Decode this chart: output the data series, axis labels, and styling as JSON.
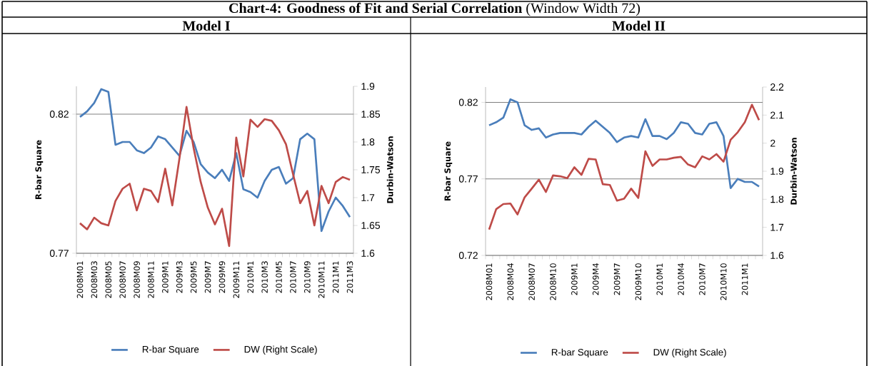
{
  "chart_data": [
    {
      "type": "line",
      "title": "Model I",
      "ylabel": "R-bar Square",
      "y2label": "Durbin-Watson",
      "annotations": [
        "**Chart-4: Goodness of Fit and Serial Correlation** (Window Width 72)"
      ],
      "categories": [
        "2008M01",
        null,
        "2008M03",
        null,
        "2008M05",
        null,
        "2008M07",
        null,
        "2008M09",
        null,
        "2008M11",
        null,
        "2009M1",
        null,
        "2009M3",
        null,
        "2009M5",
        null,
        "2009M7",
        null,
        "2009M9",
        null,
        "2009M11",
        null,
        "2010M1",
        null,
        "2010M3",
        null,
        "2010M5",
        null,
        "2010M7",
        null,
        "2010M9",
        null,
        "2010M11",
        null,
        "2011M1",
        null,
        "2011M3"
      ],
      "series": [
        {
          "name": "R-bar Square",
          "color": "#4a7ebb",
          "values": [
            0.819,
            0.821,
            0.824,
            0.829,
            0.828,
            0.809,
            0.81,
            0.81,
            0.807,
            0.806,
            0.808,
            0.812,
            0.811,
            0.808,
            0.805,
            0.814,
            0.81,
            0.802,
            0.799,
            0.797,
            0.8,
            0.796,
            0.806,
            0.793,
            0.792,
            0.79,
            0.796,
            0.8,
            0.801,
            0.795,
            0.797,
            0.811,
            0.813,
            0.811,
            0.778,
            0.785,
            0.79,
            0.787,
            0.783
          ]
        },
        {
          "name": "DW (Right Scale)",
          "color": "#be4b48",
          "axis": "y2",
          "values": [
            1.654,
            1.643,
            1.664,
            1.654,
            1.65,
            1.694,
            1.716,
            1.725,
            1.677,
            1.716,
            1.712,
            1.692,
            1.752,
            1.686,
            1.77,
            1.863,
            1.789,
            1.728,
            1.682,
            1.652,
            1.68,
            1.613,
            1.808,
            1.738,
            1.84,
            1.827,
            1.841,
            1.838,
            1.821,
            1.796,
            1.742,
            1.69,
            1.712,
            1.65,
            1.721,
            1.69,
            1.728,
            1.737,
            1.732
          ]
        }
      ],
      "ylim": [
        0.77,
        0.83
      ],
      "yticks": [
        0.77,
        0.82
      ],
      "y2lim": [
        1.6,
        1.9
      ],
      "y2ticks": [
        1.6,
        1.65,
        1.7,
        1.75,
        1.8,
        1.85,
        1.9
      ],
      "grid": "y",
      "legend": "bottom"
    },
    {
      "type": "line",
      "title": "Model II",
      "ylabel": "R-bar Square",
      "y2label": "Durbin-Watson",
      "categories": [
        "2008M01",
        null,
        null,
        "2008M04",
        null,
        null,
        "2008M07",
        null,
        null,
        "2008M10",
        null,
        null,
        "2009M1",
        null,
        null,
        "2009M4",
        null,
        null,
        "2009M7",
        null,
        null,
        "2009M10",
        null,
        null,
        "2010M1",
        null,
        null,
        "2010M4",
        null,
        null,
        "2010M7",
        null,
        null,
        "2010M10",
        null,
        null,
        "2011M1",
        null,
        null
      ],
      "series": [
        {
          "name": "R-bar Square",
          "color": "#4a7ebb",
          "values": [
            0.805,
            0.807,
            0.81,
            0.822,
            0.82,
            0.805,
            0.802,
            0.803,
            0.797,
            0.799,
            0.8,
            0.8,
            0.8,
            0.799,
            0.804,
            0.808,
            0.804,
            0.8,
            0.794,
            0.797,
            0.798,
            0.797,
            0.809,
            0.798,
            0.798,
            0.796,
            0.8,
            0.807,
            0.806,
            0.8,
            0.799,
            0.806,
            0.807,
            0.798,
            0.764,
            0.77,
            0.768,
            0.768,
            0.765
          ]
        },
        {
          "name": "DW (Right Scale)",
          "color": "#be4b48",
          "axis": "y2",
          "values": [
            1.692,
            1.765,
            1.783,
            1.785,
            1.746,
            1.807,
            1.838,
            1.87,
            1.826,
            1.885,
            1.882,
            1.875,
            1.914,
            1.887,
            1.944,
            1.942,
            1.854,
            1.851,
            1.795,
            1.802,
            1.838,
            1.805,
            1.971,
            1.919,
            1.942,
            1.942,
            1.948,
            1.951,
            1.924,
            1.914,
            1.953,
            1.942,
            1.961,
            1.934,
            2.012,
            2.039,
            2.075,
            2.137,
            2.082
          ]
        }
      ],
      "ylim": [
        0.72,
        0.83
      ],
      "yticks": [
        0.72,
        0.77,
        0.82
      ],
      "y2lim": [
        1.6,
        2.2
      ],
      "y2ticks": [
        1.6,
        1.7,
        1.8,
        1.9,
        2,
        2.1,
        2.2
      ],
      "grid": "y",
      "legend": "bottom"
    }
  ]
}
